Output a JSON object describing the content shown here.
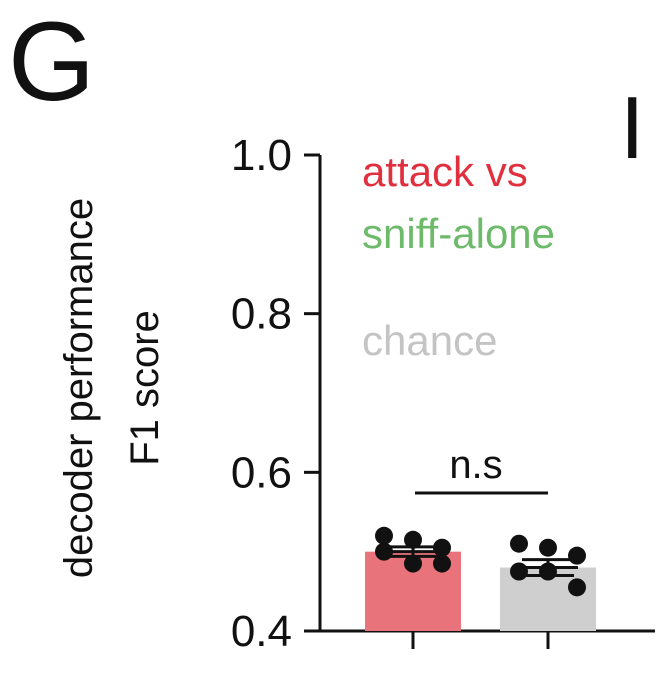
{
  "panel": {
    "letter": "G",
    "next_letter": "I"
  },
  "chart_data": {
    "type": "bar",
    "categories": [
      "",
      ""
    ],
    "series": [
      {
        "name": "attack vs",
        "color": "#e8737a",
        "value": 0.5,
        "error": 0.006,
        "points": [
          0.52,
          0.515,
          0.505,
          0.5,
          0.485,
          0.485
        ]
      },
      {
        "name": "sniff-alone",
        "color": "#cfcfcf",
        "value": 0.48,
        "error": 0.01,
        "points": [
          0.51,
          0.505,
          0.495,
          0.475,
          0.475,
          0.455
        ]
      }
    ],
    "ylabel_lines": [
      "decoder performance",
      "F1 score"
    ],
    "ylim": [
      0.4,
      1.0
    ],
    "yticks": [
      0.4,
      0.6,
      0.8,
      1.0
    ],
    "ytick_labels": [
      "0.4",
      "0.6",
      "0.8",
      "1.0"
    ],
    "legend": [
      {
        "text": "attack vs",
        "color": "#e0303f"
      },
      {
        "text": "sniff-alone",
        "color": "#6dbb6a"
      },
      {
        "text": "chance",
        "color": "#c4c4c4"
      }
    ],
    "legend_position": "top-right",
    "annotation": {
      "text": "n.s"
    },
    "grid": false
  }
}
